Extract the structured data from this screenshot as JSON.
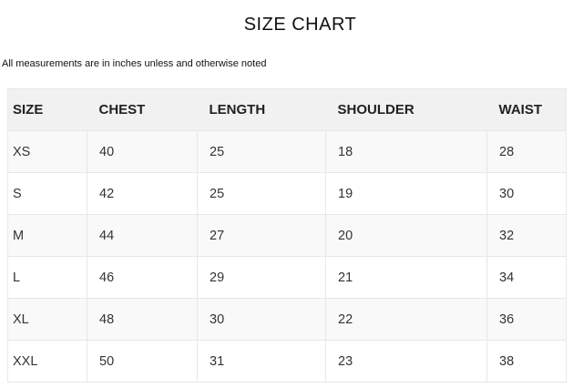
{
  "page": {
    "title": "SIZE CHART",
    "note": "All measurements are in inches unless and otherwise noted"
  },
  "size_table": {
    "columns": [
      "SIZE",
      "CHEST",
      "LENGTH",
      "SHOULDER",
      "WAIST"
    ],
    "rows": [
      [
        "XS",
        "40",
        "25",
        "18",
        "28"
      ],
      [
        "S",
        "42",
        "25",
        "19",
        "30"
      ],
      [
        "M",
        "44",
        "27",
        "20",
        "32"
      ],
      [
        "L",
        "46",
        "29",
        "21",
        "34"
      ],
      [
        "XL",
        "48",
        "30",
        "22",
        "36"
      ],
      [
        "XXL",
        "50",
        "31",
        "23",
        "38"
      ]
    ]
  },
  "colors": {
    "page_bg": "#ffffff",
    "header_bg": "#f1f1f1",
    "row_alt_bg": "#f9f9f9",
    "row_bg": "#ffffff",
    "border": "#e7e7e7",
    "heading_text": "#111111",
    "header_text": "#212121",
    "body_text": "#333333"
  }
}
